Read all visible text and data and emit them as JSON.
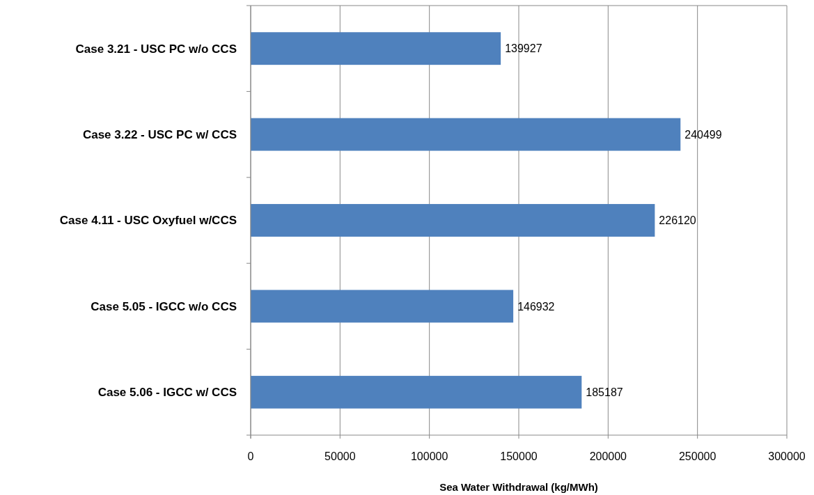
{
  "chart_data": {
    "type": "bar",
    "orientation": "horizontal",
    "xlabel": "Sea Water Withdrawal (kg/MWh)",
    "categories": [
      "Case 3.21 - USC PC w/o CCS",
      "Case 3.22 - USC PC w/ CCS",
      "Case 4.11 - USC Oxyfuel w/CCS",
      "Case 5.05 - IGCC w/o CCS",
      "Case 5.06 - IGCC w/ CCS"
    ],
    "values": [
      139927,
      240499,
      226120,
      146932,
      185187
    ],
    "color": "#4f81bd",
    "xlim": [
      0,
      300000
    ],
    "xticks": [
      0,
      50000,
      100000,
      150000,
      200000,
      250000,
      300000
    ],
    "grid": "x",
    "data_labels": true
  }
}
